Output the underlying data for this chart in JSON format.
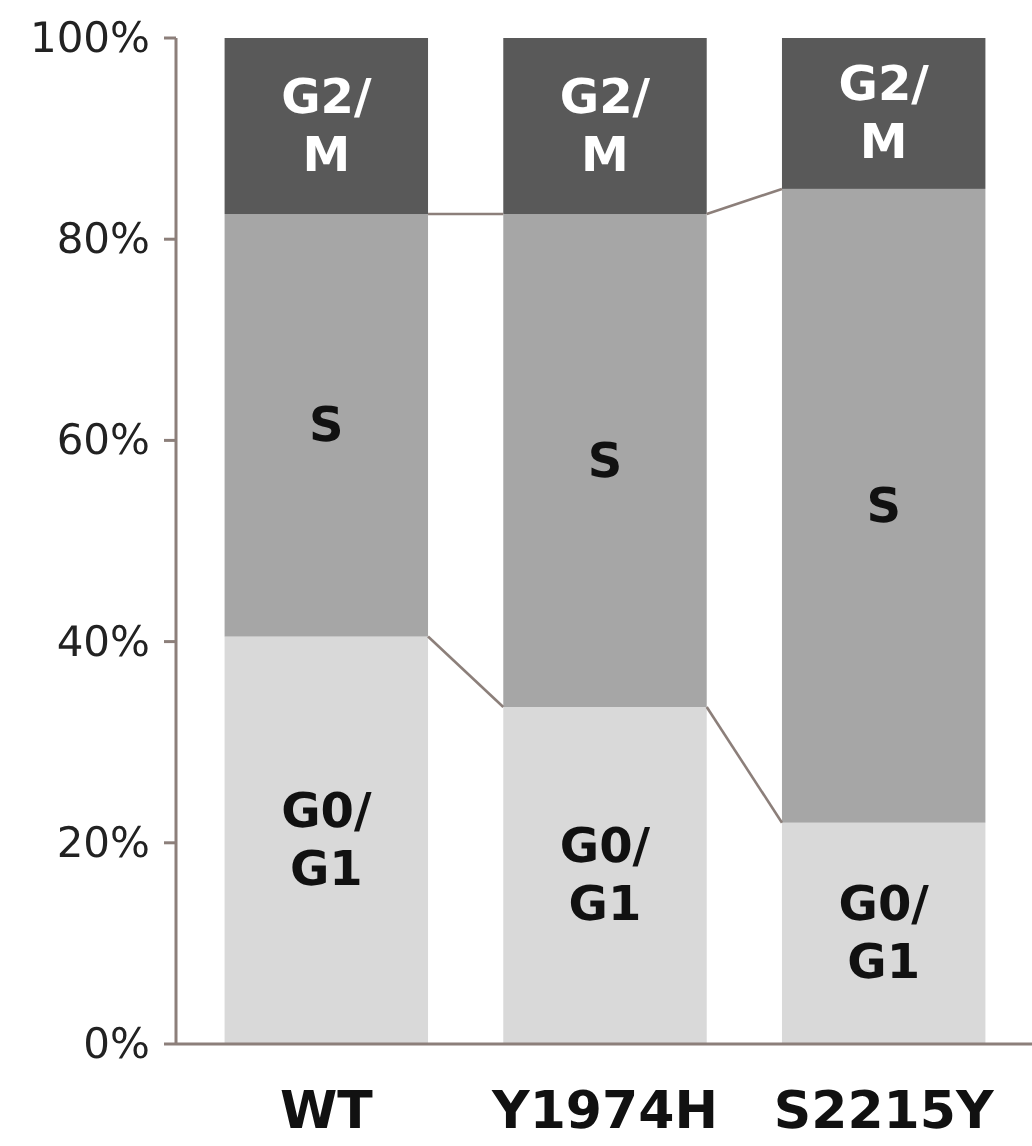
{
  "chart_data": {
    "type": "bar",
    "stacked": true,
    "categories": [
      "WT",
      "Y1974H",
      "S2215Y"
    ],
    "series": [
      {
        "name": "G0/G1",
        "color": "#d9d9d9",
        "values": [
          40.5,
          33.5,
          22
        ]
      },
      {
        "name": "S",
        "color": "#a6a6a6",
        "values": [
          42,
          49,
          63
        ]
      },
      {
        "name": "G2/M",
        "color": "#595959",
        "values": [
          17.5,
          17.5,
          15
        ]
      }
    ],
    "ylim": [
      0,
      100
    ],
    "yticks": [
      {
        "value": 0,
        "label": "0%"
      },
      {
        "value": 20,
        "label": "20%"
      },
      {
        "value": 40,
        "label": "40%"
      },
      {
        "value": 60,
        "label": "60%"
      },
      {
        "value": 80,
        "label": "80%"
      },
      {
        "value": 100,
        "label": "100%"
      }
    ],
    "grid": false,
    "legend": false
  }
}
